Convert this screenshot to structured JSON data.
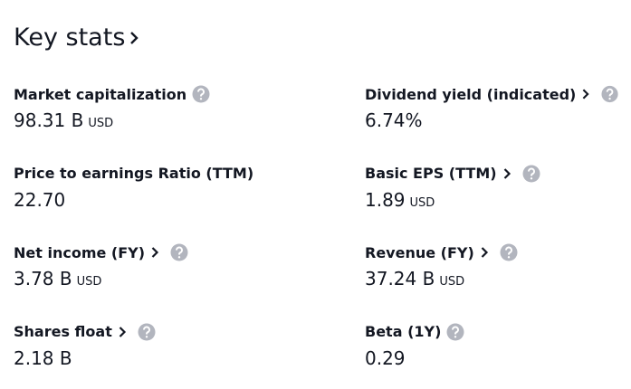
{
  "header": {
    "title": "Key stats"
  },
  "stats": [
    {
      "label": "Market capitalization",
      "value": "98.31 B",
      "unit": "USD",
      "link": false
    },
    {
      "label": "Dividend yield (indicated)",
      "value": "6.74%",
      "link": true
    },
    {
      "label": "Price to earnings Ratio (TTM)",
      "value": "22.70",
      "link": true
    },
    {
      "label": "Basic EPS (TTM)",
      "value": "1.89",
      "unit": "USD",
      "link": true
    },
    {
      "label": "Net income (FY)",
      "value": "3.78 B",
      "unit": "USD",
      "link": true
    },
    {
      "label": "Revenue (FY)",
      "value": "37.24 B",
      "unit": "USD",
      "link": true
    },
    {
      "label": "Shares float",
      "value": "2.18 B",
      "link": true
    },
    {
      "label": "Beta (1Y)",
      "value": "0.29",
      "link": false
    }
  ]
}
